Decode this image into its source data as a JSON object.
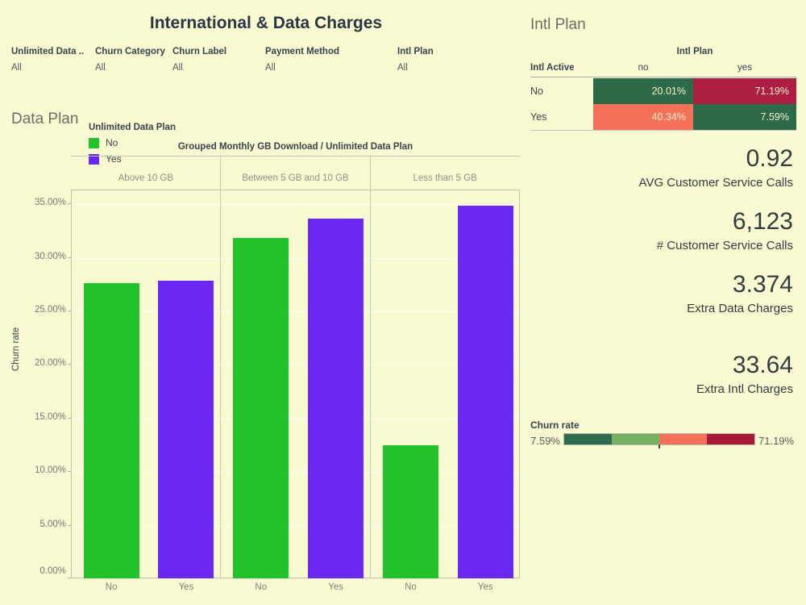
{
  "app": {
    "background_color": "#FAFAD2",
    "title": "International & Data Charges"
  },
  "filters": [
    {
      "label": "Unlimited Data ..",
      "value": "All"
    },
    {
      "label": "Churn Category",
      "value": "All"
    },
    {
      "label": "Churn Label",
      "value": "All"
    },
    {
      "label": "Payment Method",
      "value": "All"
    },
    {
      "label": "Intl Plan",
      "value": "All"
    }
  ],
  "data_plan_section": {
    "section_title": "Data Plan",
    "legend": {
      "title": "Unlimited Data Plan",
      "items": [
        {
          "label": "No",
          "color": "#22C32B"
        },
        {
          "label": "Yes",
          "color": "#6A28F2"
        }
      ]
    }
  },
  "chart_data": {
    "type": "bar",
    "title": "Grouped Monthly GB Download  /  Unlimited Data Plan",
    "column_field": "Grouped Monthly GB Download",
    "series_field": "Unlimited Data Plan",
    "categories": [
      "Above 10 GB",
      "Between 5 GB and 10 GB",
      "Less than 5 GB"
    ],
    "series": [
      {
        "name": "No",
        "color": "#22C32B",
        "values": [
          27.6,
          31.8,
          12.4
        ]
      },
      {
        "name": "Yes",
        "color": "#6A28F2",
        "values": [
          27.8,
          33.6,
          34.8
        ]
      }
    ],
    "bar_x_labels": [
      "No",
      "Yes"
    ],
    "ylabel": "Churn rate",
    "ylim": [
      0,
      36.3
    ],
    "ytick_values": [
      0,
      5,
      10,
      15,
      20,
      25,
      30,
      35
    ],
    "ytick_labels": [
      "0.00%",
      "5.00%",
      "10.00%",
      "15.00%",
      "20.00%",
      "25.00%",
      "30.00%",
      "35.00%"
    ],
    "grid": true,
    "legend_position": "top-left"
  },
  "intl_plan_section": {
    "section_title": "Intl Plan",
    "table": {
      "column_dimension": "Intl Plan",
      "row_dimension": "Intl Active",
      "columns": [
        "no",
        "yes"
      ],
      "rows": [
        {
          "label": "No",
          "cells": [
            {
              "value": "20.01%",
              "color": "#2D6A4A"
            },
            {
              "value": "71.19%",
              "color": "#AD1E43"
            }
          ]
        },
        {
          "label": "Yes",
          "cells": [
            {
              "value": "40.34%",
              "color": "#F5715A"
            },
            {
              "value": "7.59%",
              "color": "#2D6A4A"
            }
          ]
        }
      ]
    }
  },
  "kpis": [
    {
      "value": "0.92",
      "label": "AVG Customer Service Calls"
    },
    {
      "value": "6,123",
      "label": "# Customer Service Calls"
    },
    {
      "value": "3.374",
      "label": "Extra Data Charges"
    },
    {
      "value": "33.64",
      "label": "Extra Intl Charges"
    }
  ],
  "churn_legend": {
    "title": "Churn rate",
    "min_label": "7.59%",
    "max_label": "71.19%",
    "segment_colors": [
      "#2D6A4F",
      "#74B061",
      "#F5715A",
      "#A81A38"
    ]
  }
}
